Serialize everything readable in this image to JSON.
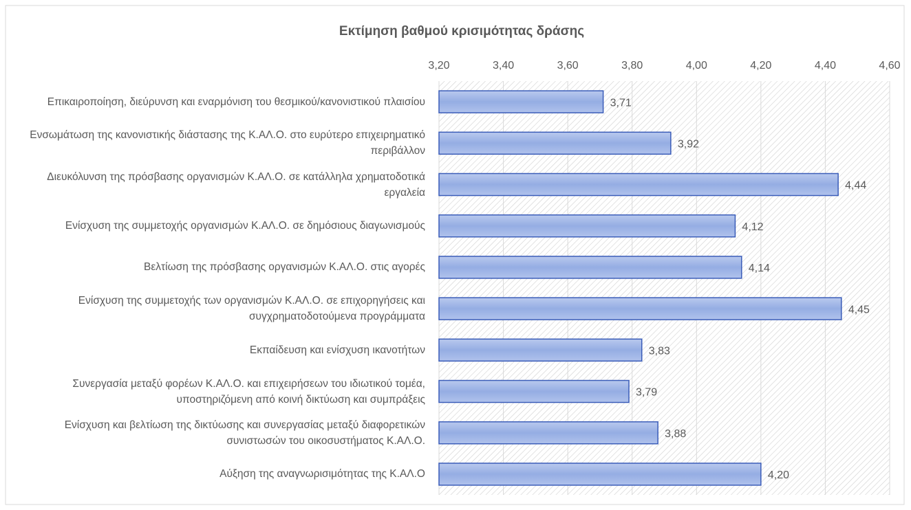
{
  "chart_data": {
    "type": "bar",
    "orientation": "horizontal",
    "title": "Εκτίμηση βαθμού κρισιμότητας δράσης",
    "categories": [
      "Επικαιροποίηση, διεύρυνση και εναρμόνιση του θεσμικού/κανονιστικού πλαισίου",
      "Ενσωμάτωση της κανονιστικής διάστασης της Κ.ΑΛ.Ο. στο ευρύτερο επιχειρηματικό περιβάλλον",
      "Διευκόλυνση της πρόσβασης οργανισμών Κ.ΑΛ.Ο. σε κατάλληλα χρηματοδοτικά εργαλεία",
      "Ενίσχυση της συμμετοχής οργανισμών Κ.ΑΛ.Ο. σε δημόσιους διαγωνισμούς",
      "Βελτίωση της πρόσβασης οργανισμών Κ.ΑΛ.Ο. στις αγορές",
      "Ενίσχυση της συμμετοχής των οργανισμών Κ.ΑΛ.Ο. σε επιχορηγήσεις και συγχρηματοδοτούμενα προγράμματα",
      "Εκπαίδευση και ενίσχυση ικανοτήτων",
      "Συνεργασία μεταξύ φορέων Κ.ΑΛ.Ο. και επιχειρήσεων του ιδιωτικού τομέα, υποστηριζόμενη από κοινή δικτύωση και συμπράξεις",
      "Ενίσχυση και βελτίωση της δικτύωσης και συνεργασίας μεταξύ διαφορετικών συνιστωσών του οικοσυστήματος Κ.ΑΛ.Ο.",
      "Αύξηση της αναγνωρισιμότητας της Κ.ΑΛ.Ο"
    ],
    "values": [
      3.71,
      3.92,
      4.44,
      4.12,
      4.14,
      4.45,
      3.83,
      3.79,
      3.88,
      4.2
    ],
    "value_labels": [
      "3,71",
      "3,92",
      "4,44",
      "4,12",
      "4,14",
      "4,45",
      "3,83",
      "3,79",
      "3,88",
      "4,20"
    ],
    "color": "#8fa8e0",
    "xlim": [
      3.2,
      4.6
    ],
    "xticks": [
      {
        "value": 3.2,
        "label": "3,20"
      },
      {
        "value": 3.4,
        "label": "3,40"
      },
      {
        "value": 3.6,
        "label": "3,60"
      },
      {
        "value": 3.8,
        "label": "3,80"
      },
      {
        "value": 4.0,
        "label": "4,00"
      },
      {
        "value": 4.2,
        "label": "4,20"
      },
      {
        "value": 4.4,
        "label": "4,40"
      },
      {
        "value": 4.6,
        "label": "4,60"
      }
    ],
    "grid": true
  }
}
